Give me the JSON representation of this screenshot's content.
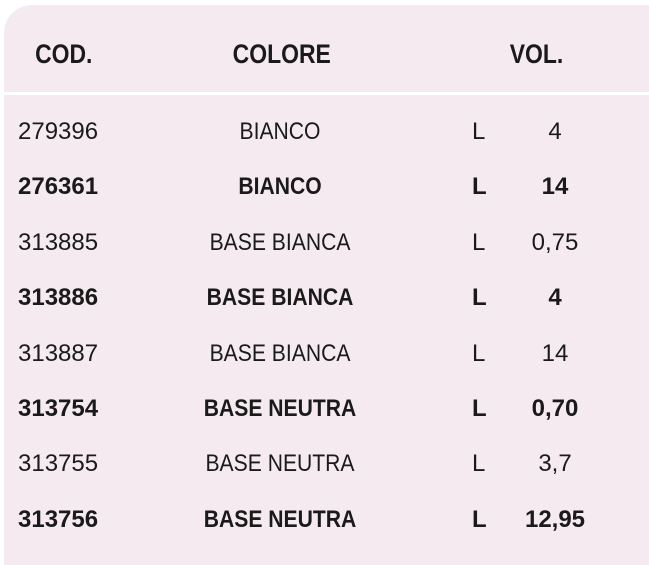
{
  "colors": {
    "background": "#f5eaf0",
    "divider": "#ffffff"
  },
  "headers": [
    "COD.",
    "COLORE",
    "VOL."
  ],
  "rows": [
    {
      "code": "279396",
      "color": "BIANCO",
      "unit": "L",
      "volume": "4",
      "bold": false
    },
    {
      "code": "276361",
      "color": "BIANCO",
      "unit": "L",
      "volume": "14",
      "bold": true
    },
    {
      "code": "313885",
      "color": "BASE BIANCA",
      "unit": "L",
      "volume": "0,75",
      "bold": false
    },
    {
      "code": "313886",
      "color": "BASE BIANCA",
      "unit": "L",
      "volume": "4",
      "bold": true
    },
    {
      "code": "313887",
      "color": "BASE BIANCA",
      "unit": "L",
      "volume": "14",
      "bold": false
    },
    {
      "code": "313754",
      "color": "BASE NEUTRA",
      "unit": "L",
      "volume": "0,70",
      "bold": true
    },
    {
      "code": "313755",
      "color": "BASE NEUTRA",
      "unit": "L",
      "volume": "3,7",
      "bold": false
    },
    {
      "code": "313756",
      "color": "BASE NEUTRA",
      "unit": "L",
      "volume": "12,95",
      "bold": true
    }
  ]
}
